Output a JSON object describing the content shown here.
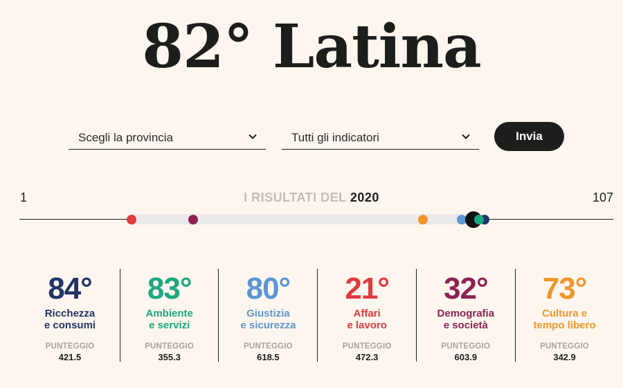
{
  "title": "82° Latina",
  "form": {
    "province_select": "Scegli la provincia",
    "indicator_select": "Tutti gli indicatori",
    "submit_label": "Invia"
  },
  "scale": {
    "min_label": "1",
    "max_label": "107",
    "results_prefix": "I RISULTATI DEL",
    "year": "2020"
  },
  "colors": {
    "ricchezza": "#223366",
    "ambiente": "#1aa87e",
    "giustizia": "#5b96d2",
    "affari": "#e03a3e",
    "demografia": "#8b2252",
    "cultura": "#f0952a",
    "overall": "#111111"
  },
  "cards": [
    {
      "rank": "84°",
      "category": "Ricchezza\ne consumi",
      "points_label": "PUNTEGGIO",
      "points": "421.5",
      "color": "#223366"
    },
    {
      "rank": "83°",
      "category": "Ambiente\ne servizi",
      "points_label": "PUNTEGGIO",
      "points": "355.3",
      "color": "#1aa87e"
    },
    {
      "rank": "80°",
      "category": "Giustizia\ne sicurezza",
      "points_label": "PUNTEGGIO",
      "points": "618.5",
      "color": "#5b96d2"
    },
    {
      "rank": "21°",
      "category": "Affari\ne lavoro",
      "points_label": "PUNTEGGIO",
      "points": "472.3",
      "color": "#e03a3e"
    },
    {
      "rank": "32°",
      "category": "Demografia\ne società",
      "points_label": "PUNTEGGIO",
      "points": "603.9",
      "color": "#8b2252"
    },
    {
      "rank": "73°",
      "category": "Cultura e\ntempo libero",
      "points_label": "PUNTEGGIO",
      "points": "342.9",
      "color": "#f0952a"
    }
  ],
  "rank_markers": [
    {
      "name": "affari",
      "rank": 21,
      "color": "#e03a3e"
    },
    {
      "name": "demografia",
      "rank": 32,
      "color": "#8b2252"
    },
    {
      "name": "cultura",
      "rank": 73,
      "color": "#f0952a"
    },
    {
      "name": "giustizia",
      "rank": 80,
      "color": "#5b96d2"
    },
    {
      "name": "ricchezza",
      "rank": 84,
      "color": "#223366"
    },
    {
      "name": "overall",
      "rank": 82,
      "color": "#111111"
    },
    {
      "name": "ambiente",
      "rank": 83,
      "color": "#1aa87e"
    }
  ],
  "rank_range": [
    1,
    107
  ]
}
